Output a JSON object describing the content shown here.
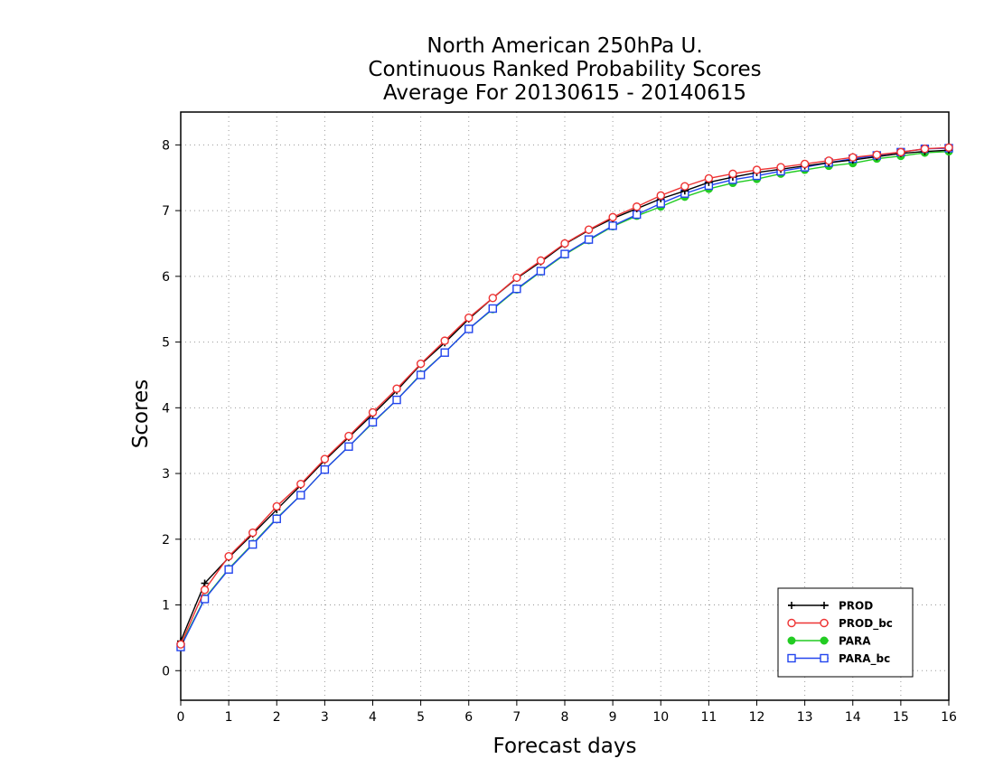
{
  "chart_data": {
    "type": "line",
    "title": [
      "North American 250hPa U.",
      "Continuous Ranked Probability Scores",
      "Average For 20130615 - 20140615"
    ],
    "xlabel": "Forecast days",
    "ylabel": "Scores",
    "xlim": [
      0,
      16
    ],
    "ylim": [
      -0.45,
      8.5
    ],
    "xticks": [
      "0",
      "1",
      "2",
      "3",
      "4",
      "5",
      "6",
      "7",
      "8",
      "9",
      "10",
      "11",
      "12",
      "13",
      "14",
      "15",
      "16"
    ],
    "yticks": [
      "0",
      "1",
      "2",
      "3",
      "4",
      "5",
      "6",
      "7",
      "8"
    ],
    "grid": true,
    "legend_position": "bottom-right",
    "x": [
      0,
      0.5,
      1,
      1.5,
      2,
      2.5,
      3,
      3.5,
      4,
      4.5,
      5,
      5.5,
      6,
      6.5,
      7,
      7.5,
      8,
      8.5,
      9,
      9.5,
      10,
      10.5,
      11,
      11.5,
      12,
      12.5,
      13,
      13.5,
      14,
      14.5,
      15,
      15.5,
      16
    ],
    "series": [
      {
        "name": "PROD",
        "color": "#000000",
        "marker": "plus",
        "values": [
          0.45,
          1.33,
          1.72,
          2.08,
          2.45,
          2.82,
          3.2,
          3.55,
          3.9,
          4.26,
          4.66,
          4.99,
          5.35,
          5.67,
          5.97,
          6.22,
          6.49,
          6.7,
          6.88,
          7.03,
          7.18,
          7.3,
          7.43,
          7.51,
          7.58,
          7.63,
          7.68,
          7.73,
          7.77,
          7.82,
          7.87,
          7.9,
          7.92
        ]
      },
      {
        "name": "PROD_bc",
        "color": "#ee3333",
        "marker": "circle-open",
        "values": [
          0.4,
          1.23,
          1.74,
          2.1,
          2.5,
          2.84,
          3.22,
          3.57,
          3.93,
          4.29,
          4.67,
          5.02,
          5.37,
          5.67,
          5.98,
          6.24,
          6.5,
          6.71,
          6.9,
          7.06,
          7.23,
          7.37,
          7.49,
          7.56,
          7.62,
          7.66,
          7.71,
          7.76,
          7.81,
          7.85,
          7.89,
          7.94,
          7.96
        ]
      },
      {
        "name": "PARA",
        "color": "#22cc22",
        "marker": "circle-filled",
        "values": [
          0.38,
          1.1,
          1.55,
          1.93,
          2.32,
          2.67,
          3.06,
          3.41,
          3.77,
          4.12,
          4.51,
          4.84,
          5.2,
          5.5,
          5.8,
          6.07,
          6.33,
          6.55,
          6.76,
          6.92,
          7.06,
          7.21,
          7.33,
          7.42,
          7.48,
          7.56,
          7.62,
          7.68,
          7.72,
          7.79,
          7.83,
          7.88,
          7.9
        ]
      },
      {
        "name": "PARA_bc",
        "color": "#2244ee",
        "marker": "square-open",
        "values": [
          0.36,
          1.09,
          1.54,
          1.92,
          2.31,
          2.67,
          3.06,
          3.41,
          3.78,
          4.12,
          4.5,
          4.84,
          5.2,
          5.51,
          5.81,
          6.08,
          6.34,
          6.56,
          6.77,
          6.94,
          7.11,
          7.26,
          7.38,
          7.47,
          7.53,
          7.6,
          7.66,
          7.73,
          7.79,
          7.84,
          7.89,
          7.94,
          7.95
        ]
      }
    ]
  }
}
